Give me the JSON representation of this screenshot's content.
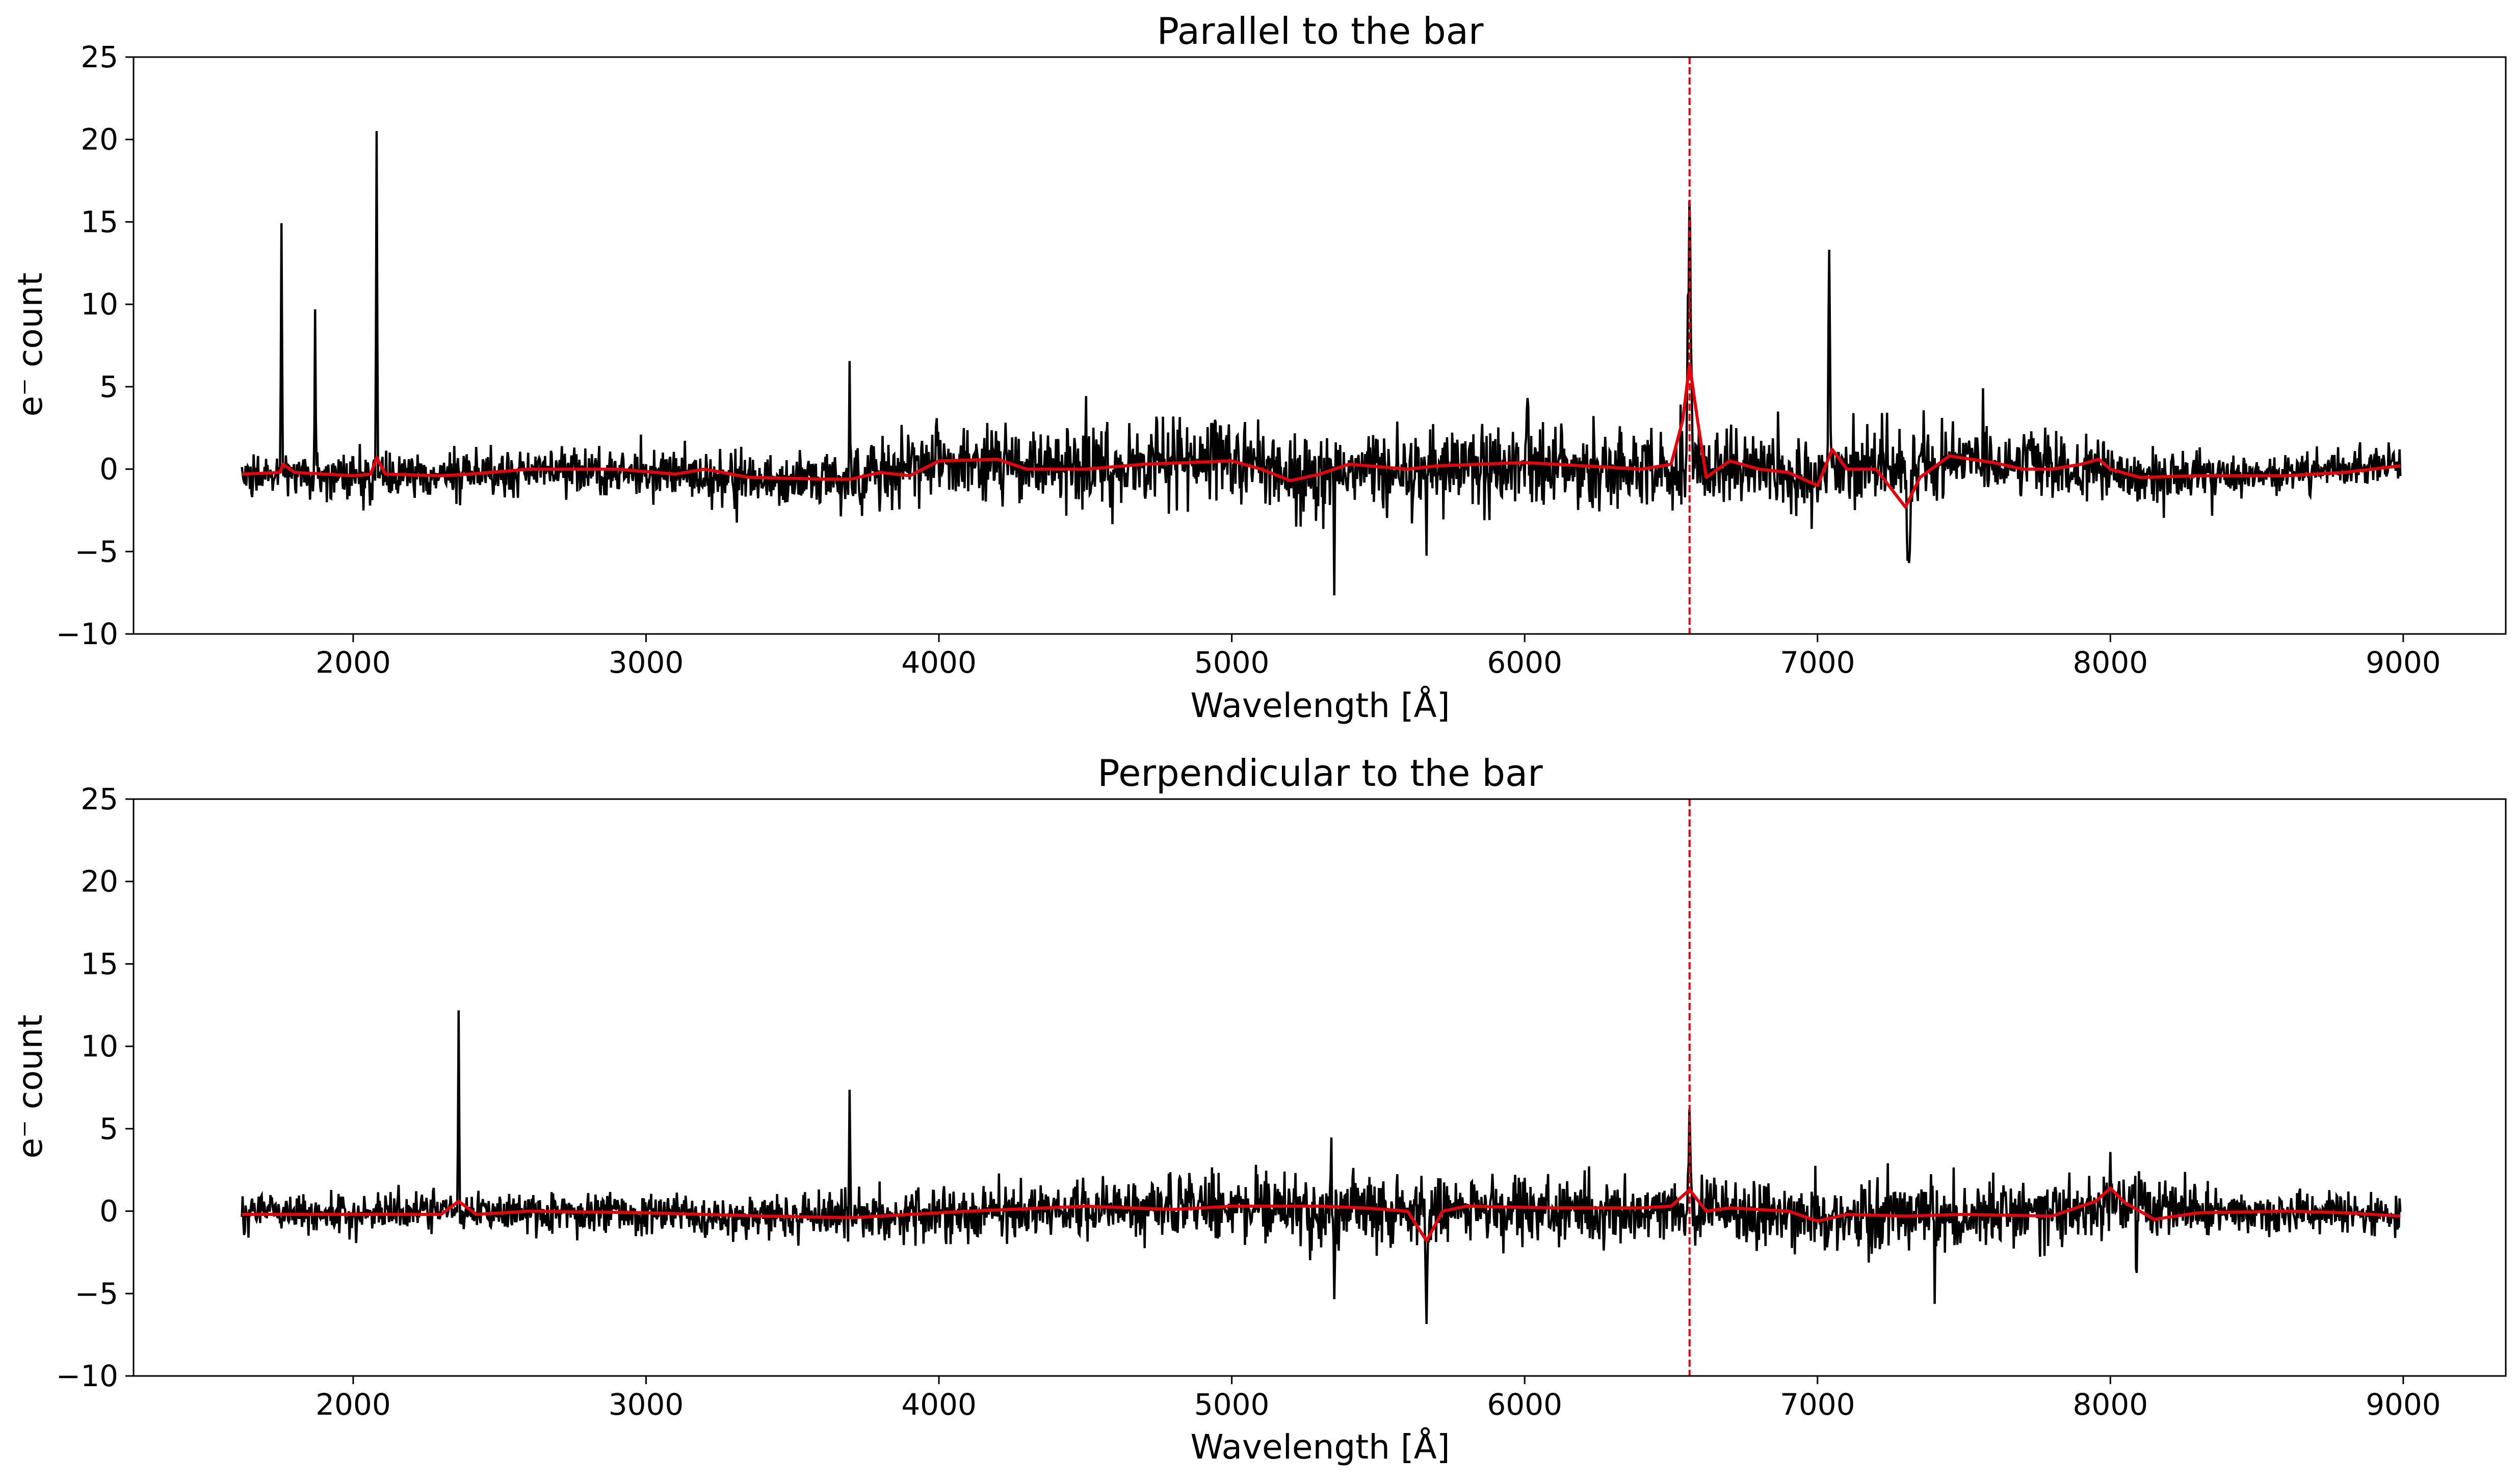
{
  "chart_data": [
    {
      "type": "line",
      "title": "Parallel to the bar",
      "xlabel": "Wavelength [Å]",
      "ylabel": "e⁻ count",
      "xlim": [
        1250,
        9350
      ],
      "ylim": [
        -10,
        25
      ],
      "xticks": [
        2000,
        3000,
        4000,
        5000,
        6000,
        7000,
        8000,
        9000
      ],
      "yticks": [
        -10,
        -5,
        0,
        5,
        10,
        15,
        20,
        25
      ],
      "grid": false,
      "vline": {
        "x": 6563,
        "color": "#e8000b",
        "style": "dashed"
      },
      "series": [
        {
          "color": "#000000",
          "x_range": [
            1620,
            8990
          ],
          "noise_profile": [
            [
              1620,
              1.0
            ],
            [
              2300,
              1.1
            ],
            [
              3500,
              1.3
            ],
            [
              4000,
              1.8
            ],
            [
              4500,
              2.0
            ],
            [
              5000,
              2.1
            ],
            [
              5500,
              2.0
            ],
            [
              6000,
              2.1
            ],
            [
              6500,
              2.0
            ],
            [
              7000,
              1.9
            ],
            [
              7500,
              1.7
            ],
            [
              8000,
              1.5
            ],
            [
              8500,
              1.0
            ],
            [
              8990,
              0.9
            ]
          ],
          "baseline": [
            [
              1620,
              -0.3
            ],
            [
              2100,
              -0.3
            ],
            [
              2300,
              -0.3
            ],
            [
              2600,
              0.0
            ],
            [
              3000,
              -0.2
            ],
            [
              3400,
              -0.5
            ],
            [
              3700,
              -0.6
            ],
            [
              4000,
              0.5
            ],
            [
              4300,
              0.0
            ],
            [
              4700,
              0.3
            ],
            [
              5000,
              0.5
            ],
            [
              5200,
              -0.5
            ],
            [
              5300,
              -0.2
            ],
            [
              5500,
              0.2
            ],
            [
              6000,
              0.2
            ],
            [
              6400,
              0.0
            ],
            [
              6700,
              0.0
            ],
            [
              7000,
              -0.3
            ],
            [
              7200,
              0.5
            ],
            [
              7400,
              0.5
            ],
            [
              7700,
              0.5
            ],
            [
              8100,
              -0.3
            ],
            [
              8500,
              -0.3
            ],
            [
              8990,
              0.3
            ]
          ],
          "features": [
            {
              "x": 1755,
              "peak": 18.2,
              "width": 4
            },
            {
              "x": 1870,
              "peak": 9.3,
              "width": 4
            },
            {
              "x": 2080,
              "peak": 21.8,
              "width": 4
            },
            {
              "x": 3695,
              "peak": 8.8,
              "width": 4
            },
            {
              "x": 6563,
              "peak": 15.8,
              "width": 12
            },
            {
              "x": 7040,
              "peak": 16.2,
              "width": 6
            },
            {
              "x": 5350,
              "peak": -7.0,
              "width": 4
            },
            {
              "x": 5665,
              "peak": -6.6,
              "width": 4
            },
            {
              "x": 7310,
              "peak": -5.6,
              "width": 18
            },
            {
              "x": 4650,
              "peak": 4.6,
              "width": 4
            },
            {
              "x": 4990,
              "peak": 5.0,
              "width": 4
            },
            {
              "x": 6010,
              "peak": 5.3,
              "width": 4
            }
          ]
        },
        {
          "color": "#e8000b",
          "points": [
            [
              1620,
              -0.3
            ],
            [
              1750,
              -0.2
            ],
            [
              1760,
              0.3
            ],
            [
              1800,
              -0.2
            ],
            [
              2000,
              -0.4
            ],
            [
              2060,
              -0.3
            ],
            [
              2080,
              0.7
            ],
            [
              2110,
              -0.3
            ],
            [
              2300,
              -0.4
            ],
            [
              2400,
              -0.3
            ],
            [
              2600,
              0.0
            ],
            [
              2900,
              0.0
            ],
            [
              3100,
              -0.3
            ],
            [
              3200,
              0.0
            ],
            [
              3350,
              -0.5
            ],
            [
              3600,
              -0.6
            ],
            [
              3700,
              -0.6
            ],
            [
              3800,
              -0.2
            ],
            [
              3900,
              -0.4
            ],
            [
              4000,
              0.5
            ],
            [
              4200,
              0.6
            ],
            [
              4300,
              0.0
            ],
            [
              4500,
              0.0
            ],
            [
              4700,
              0.3
            ],
            [
              5000,
              0.5
            ],
            [
              5100,
              0.0
            ],
            [
              5200,
              -0.7
            ],
            [
              5300,
              -0.3
            ],
            [
              5400,
              0.3
            ],
            [
              5600,
              0.0
            ],
            [
              5700,
              0.2
            ],
            [
              6000,
              0.4
            ],
            [
              6200,
              0.2
            ],
            [
              6400,
              0.0
            ],
            [
              6500,
              0.3
            ],
            [
              6540,
              3.0
            ],
            [
              6563,
              6.4
            ],
            [
              6590,
              3.0
            ],
            [
              6620,
              -0.5
            ],
            [
              6700,
              0.5
            ],
            [
              6800,
              0.0
            ],
            [
              6900,
              -0.2
            ],
            [
              7000,
              -1.0
            ],
            [
              7050,
              1.2
            ],
            [
              7100,
              0.0
            ],
            [
              7200,
              0.0
            ],
            [
              7300,
              -2.3
            ],
            [
              7350,
              -0.5
            ],
            [
              7450,
              0.8
            ],
            [
              7600,
              0.4
            ],
            [
              7700,
              0.0
            ],
            [
              7800,
              0.0
            ],
            [
              7900,
              0.3
            ],
            [
              7960,
              0.6
            ],
            [
              8000,
              0.0
            ],
            [
              8100,
              -0.5
            ],
            [
              8300,
              -0.4
            ],
            [
              8600,
              -0.4
            ],
            [
              8800,
              -0.2
            ],
            [
              8990,
              0.2
            ]
          ]
        }
      ]
    },
    {
      "type": "line",
      "title": "Perpendicular to the bar",
      "xlabel": "Wavelength [Å]",
      "ylabel": "e⁻ count",
      "xlim": [
        1250,
        9350
      ],
      "ylim": [
        -10,
        25
      ],
      "xticks": [
        2000,
        3000,
        4000,
        5000,
        6000,
        7000,
        8000,
        9000
      ],
      "yticks": [
        -10,
        -5,
        0,
        5,
        10,
        15,
        20,
        25
      ],
      "grid": false,
      "vline": {
        "x": 6563,
        "color": "#e8000b",
        "style": "dashed"
      },
      "series": [
        {
          "color": "#000000",
          "x_range": [
            1620,
            8990
          ],
          "noise_profile": [
            [
              1620,
              1.0
            ],
            [
              2500,
              1.0
            ],
            [
              3500,
              1.1
            ],
            [
              4500,
              1.4
            ],
            [
              5300,
              1.6
            ],
            [
              6000,
              1.6
            ],
            [
              6600,
              1.5
            ],
            [
              7000,
              1.6
            ],
            [
              7500,
              1.7
            ],
            [
              8000,
              1.5
            ],
            [
              8500,
              1.1
            ],
            [
              8990,
              1.0
            ]
          ],
          "baseline": [
            [
              1620,
              -0.2
            ],
            [
              2400,
              0.0
            ],
            [
              3000,
              -0.1
            ],
            [
              3700,
              -0.3
            ],
            [
              4500,
              0.2
            ],
            [
              5000,
              0.3
            ],
            [
              5500,
              0.1
            ],
            [
              6000,
              0.2
            ],
            [
              6500,
              0.2
            ],
            [
              7000,
              -0.3
            ],
            [
              7500,
              -0.2
            ],
            [
              8000,
              0.3
            ],
            [
              8500,
              -0.1
            ],
            [
              8990,
              -0.3
            ]
          ],
          "features": [
            {
              "x": 2360,
              "peak": 13.2,
              "width": 4
            },
            {
              "x": 3695,
              "peak": 7.8,
              "width": 4
            },
            {
              "x": 6563,
              "peak": 6.8,
              "width": 8
            },
            {
              "x": 5350,
              "peak": -5.6,
              "width": 4
            },
            {
              "x": 5665,
              "peak": -6.4,
              "width": 8
            },
            {
              "x": 8000,
              "peak": 5.3,
              "width": 6
            },
            {
              "x": 8090,
              "peak": -4.5,
              "width": 4
            },
            {
              "x": 7400,
              "peak": -4.8,
              "width": 4
            },
            {
              "x": 5340,
              "peak": 4.4,
              "width": 4
            }
          ]
        },
        {
          "color": "#e8000b",
          "points": [
            [
              1620,
              -0.2
            ],
            [
              2000,
              -0.2
            ],
            [
              2300,
              -0.2
            ],
            [
              2360,
              0.6
            ],
            [
              2420,
              -0.2
            ],
            [
              2600,
              0.0
            ],
            [
              3000,
              -0.1
            ],
            [
              3400,
              -0.3
            ],
            [
              3700,
              -0.4
            ],
            [
              3900,
              -0.2
            ],
            [
              4100,
              0.0
            ],
            [
              4500,
              0.3
            ],
            [
              4800,
              0.1
            ],
            [
              5000,
              0.3
            ],
            [
              5300,
              0.3
            ],
            [
              5450,
              0.2
            ],
            [
              5600,
              0.0
            ],
            [
              5665,
              -1.8
            ],
            [
              5720,
              0.0
            ],
            [
              5800,
              0.3
            ],
            [
              6100,
              0.2
            ],
            [
              6400,
              0.2
            ],
            [
              6500,
              0.3
            ],
            [
              6563,
              1.3
            ],
            [
              6620,
              0.0
            ],
            [
              6700,
              0.2
            ],
            [
              6900,
              0.0
            ],
            [
              7000,
              -0.6
            ],
            [
              7100,
              -0.2
            ],
            [
              7300,
              -0.3
            ],
            [
              7500,
              -0.2
            ],
            [
              7800,
              -0.3
            ],
            [
              7950,
              0.6
            ],
            [
              8000,
              1.4
            ],
            [
              8050,
              0.5
            ],
            [
              8150,
              -0.5
            ],
            [
              8300,
              -0.1
            ],
            [
              8600,
              0.0
            ],
            [
              8800,
              -0.1
            ],
            [
              8990,
              -0.3
            ]
          ]
        }
      ]
    }
  ]
}
